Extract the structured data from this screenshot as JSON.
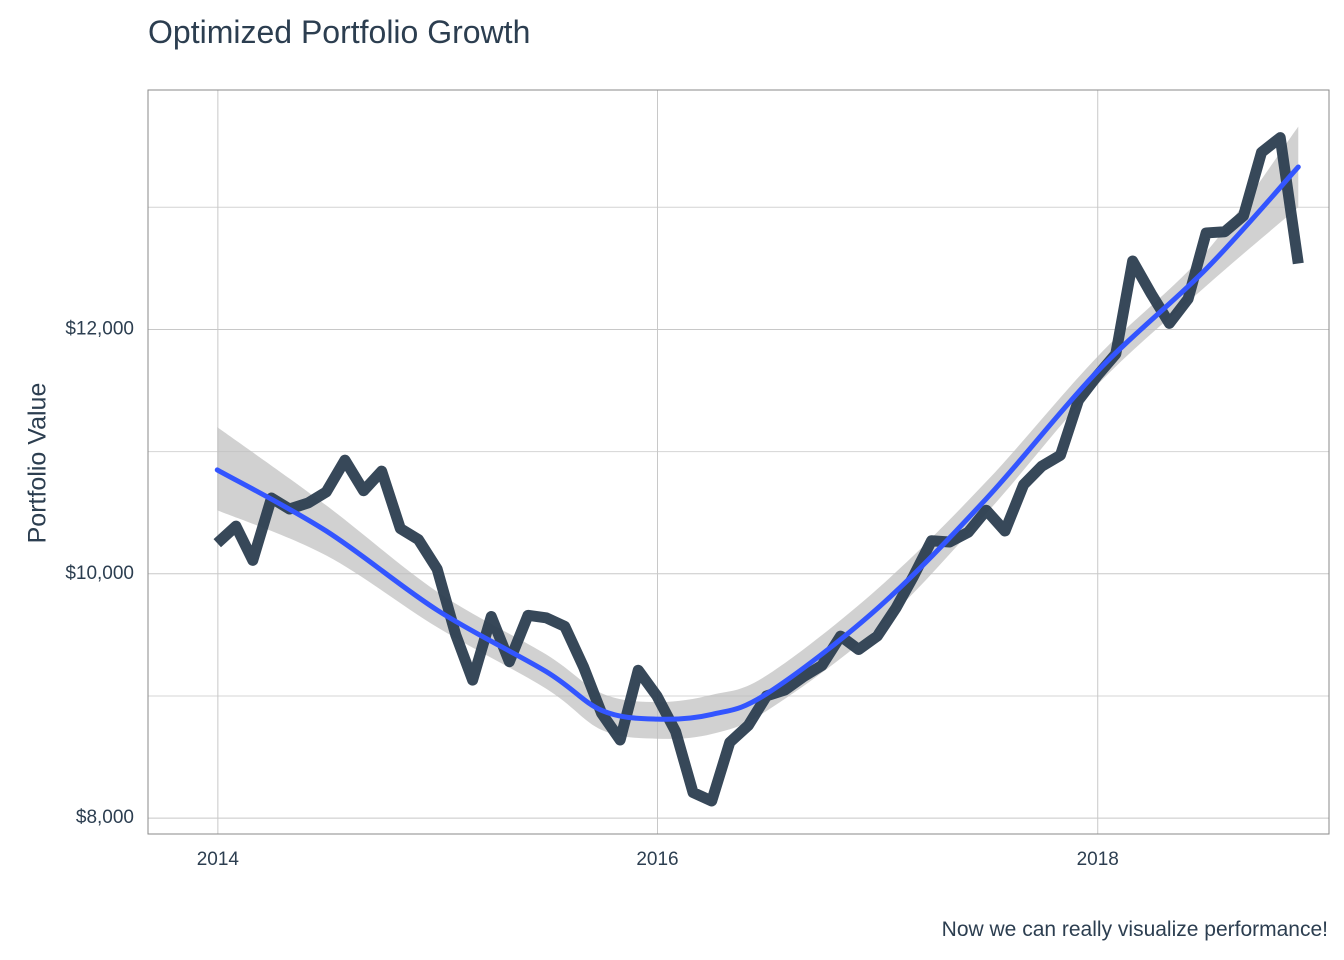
{
  "chart_data": {
    "type": "line",
    "title": "Optimized Portfolio Growth",
    "caption": "Now we can really visualize performance!",
    "xlabel": "",
    "ylabel": "Portfolio Value",
    "x_ticks": [
      {
        "date": "2014-01-01",
        "label": "2014"
      },
      {
        "date": "2016-01-01",
        "label": "2016"
      },
      {
        "date": "2018-01-01",
        "label": "2018"
      }
    ],
    "y_ticks": [
      {
        "value": 8000,
        "label": "$8,000"
      },
      {
        "value": 10000,
        "label": "$10,000"
      },
      {
        "value": 12000,
        "label": "$12,000"
      }
    ],
    "y_minor_gridlines": [
      9000,
      11000,
      13000
    ],
    "xlim": [
      "2013-09-07",
      "2019-01-20"
    ],
    "ylim": [
      7870,
      13960
    ],
    "grid": true,
    "series": [
      {
        "color": "#2c3e50",
        "points": [
          [
            "2013-12-31",
            10250
          ],
          [
            "2014-01-31",
            10390
          ],
          [
            "2014-02-28",
            10110
          ],
          [
            "2014-03-31",
            10620
          ],
          [
            "2014-04-30",
            10530
          ],
          [
            "2014-05-31",
            10580
          ],
          [
            "2014-06-30",
            10670
          ],
          [
            "2014-07-31",
            10930
          ],
          [
            "2014-08-31",
            10680
          ],
          [
            "2014-09-30",
            10840
          ],
          [
            "2014-10-31",
            10370
          ],
          [
            "2014-11-30",
            10280
          ],
          [
            "2014-12-31",
            10040
          ],
          [
            "2015-01-31",
            9500
          ],
          [
            "2015-02-28",
            9130
          ],
          [
            "2015-03-31",
            9650
          ],
          [
            "2015-04-30",
            9280
          ],
          [
            "2015-05-31",
            9660
          ],
          [
            "2015-06-30",
            9640
          ],
          [
            "2015-07-31",
            9570
          ],
          [
            "2015-08-31",
            9240
          ],
          [
            "2015-09-30",
            8860
          ],
          [
            "2015-10-31",
            8640
          ],
          [
            "2015-11-30",
            9210
          ],
          [
            "2015-12-31",
            9000
          ],
          [
            "2016-01-31",
            8710
          ],
          [
            "2016-02-29",
            8210
          ],
          [
            "2016-03-31",
            8140
          ],
          [
            "2016-04-30",
            8620
          ],
          [
            "2016-05-31",
            8760
          ],
          [
            "2016-06-30",
            9000
          ],
          [
            "2016-07-31",
            9050
          ],
          [
            "2016-08-31",
            9160
          ],
          [
            "2016-09-30",
            9250
          ],
          [
            "2016-10-31",
            9490
          ],
          [
            "2016-11-30",
            9380
          ],
          [
            "2016-12-31",
            9490
          ],
          [
            "2017-01-31",
            9720
          ],
          [
            "2017-02-28",
            9970
          ],
          [
            "2017-03-31",
            10270
          ],
          [
            "2017-04-30",
            10260
          ],
          [
            "2017-05-31",
            10340
          ],
          [
            "2017-06-30",
            10520
          ],
          [
            "2017-07-31",
            10350
          ],
          [
            "2017-08-31",
            10730
          ],
          [
            "2017-09-30",
            10880
          ],
          [
            "2017-10-31",
            10970
          ],
          [
            "2017-11-30",
            11420
          ],
          [
            "2017-12-31",
            11620
          ],
          [
            "2018-01-31",
            11800
          ],
          [
            "2018-02-28",
            12560
          ],
          [
            "2018-03-31",
            12290
          ],
          [
            "2018-04-30",
            12050
          ],
          [
            "2018-05-31",
            12250
          ],
          [
            "2018-06-30",
            12790
          ],
          [
            "2018-07-31",
            12800
          ],
          [
            "2018-08-31",
            12930
          ],
          [
            "2018-09-30",
            13450
          ],
          [
            "2018-10-31",
            13570
          ],
          [
            "2018-11-30",
            12540
          ]
        ]
      },
      {
        "color": "#3355ff",
        "ribbon_color": "#bdbdbd",
        "points": [
          [
            "2013-12-31",
            10850
          ],
          [
            "2014-06-30",
            10350
          ],
          [
            "2015-01-01",
            9700
          ],
          [
            "2015-06-30",
            9200
          ],
          [
            "2015-10-01",
            8880
          ],
          [
            "2016-01-01",
            8810
          ],
          [
            "2016-04-01",
            8850
          ],
          [
            "2016-07-01",
            9020
          ],
          [
            "2017-01-01",
            9720
          ],
          [
            "2017-07-01",
            10620
          ],
          [
            "2018-01-01",
            11660
          ],
          [
            "2018-07-01",
            12500
          ],
          [
            "2018-11-30",
            13330
          ]
        ],
        "lower": [
          10520,
          10150,
          9560,
          9060,
          8720,
          8650,
          8690,
          8880,
          9560,
          10500,
          11550,
          12360,
          13000
        ],
        "upper": [
          11200,
          10560,
          9850,
          9340,
          9020,
          8950,
          9010,
          9170,
          9880,
          10760,
          11780,
          12640,
          13660
        ]
      }
    ]
  }
}
